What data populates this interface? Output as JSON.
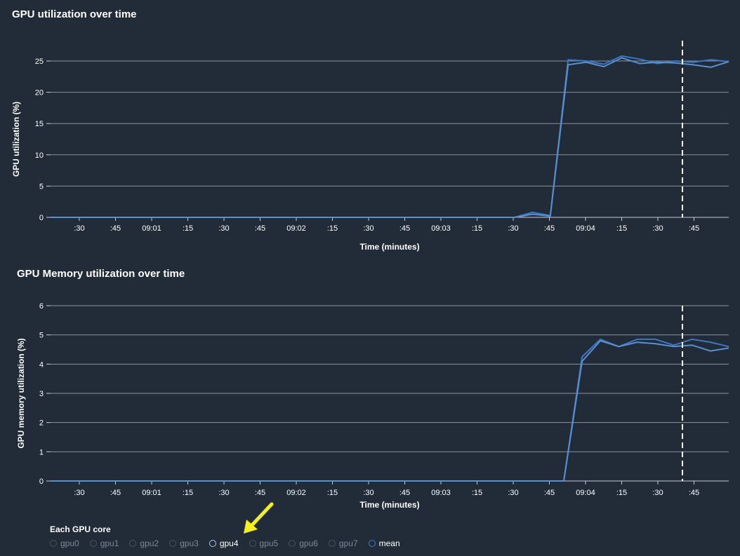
{
  "chart_data": [
    {
      "type": "line",
      "title": "GPU utilization over time",
      "xlabel": "Time (minutes)",
      "ylabel": "GPU utilization (%)",
      "ylim": [
        0,
        25
      ],
      "yticks": [
        0,
        5,
        10,
        15,
        20,
        25
      ],
      "xtick_labels": [
        ":30",
        ":45",
        "09:01",
        ":15",
        ":30",
        ":45",
        "09:02",
        ":15",
        ":30",
        ":45",
        "09:03",
        ":15",
        ":30",
        ":45",
        "09:04",
        ":15",
        ":30",
        ":45"
      ],
      "grid": true,
      "marker": "vertical dashed line near :40",
      "series": [
        {
          "values": [
            0,
            0,
            0,
            0,
            0,
            0,
            0,
            0,
            0,
            0,
            0,
            0,
            0,
            0,
            0,
            0,
            0,
            0,
            0,
            0,
            0,
            0,
            0,
            0,
            0,
            0,
            0,
            0.8,
            0.3,
            25.2,
            25.0,
            24.5,
            25.8,
            25.3,
            24.6,
            25.0,
            24.8,
            25.2,
            24.9
          ]
        },
        {
          "values": [
            0,
            0,
            0,
            0,
            0,
            0,
            0,
            0,
            0,
            0,
            0,
            0,
            0,
            0,
            0,
            0,
            0,
            0,
            0,
            0,
            0,
            0,
            0,
            0,
            0,
            0,
            0,
            0.5,
            0.2,
            24.4,
            24.8,
            24.1,
            25.5,
            24.6,
            24.8,
            24.7,
            24.4,
            24.0,
            24.9
          ]
        }
      ]
    },
    {
      "type": "line",
      "title": "GPU Memory utilization over time",
      "xlabel": "Time (minutes)",
      "ylabel": "GPU memory utilization (%)",
      "ylim": [
        0,
        6
      ],
      "yticks": [
        0,
        1,
        2,
        3,
        4,
        5,
        6
      ],
      "xtick_labels": [
        ":30",
        ":45",
        "09:01",
        ":15",
        ":30",
        ":45",
        "09:02",
        ":15",
        ":30",
        ":45",
        "09:03",
        ":15",
        ":30",
        ":45",
        "09:04",
        ":15",
        ":30",
        ":45"
      ],
      "grid": true,
      "marker": "vertical dashed line near :40",
      "series": [
        {
          "values": [
            0,
            0,
            0,
            0,
            0,
            0,
            0,
            0,
            0,
            0,
            0,
            0,
            0,
            0,
            0,
            0,
            0,
            0,
            0,
            0,
            0,
            0,
            0,
            0,
            0,
            0,
            0,
            0,
            0,
            4.25,
            4.85,
            4.6,
            4.85,
            4.85,
            4.65,
            4.85,
            4.75,
            4.6
          ]
        },
        {
          "values": [
            0,
            0,
            0,
            0,
            0,
            0,
            0,
            0,
            0,
            0,
            0,
            0,
            0,
            0,
            0,
            0,
            0,
            0,
            0,
            0,
            0,
            0,
            0,
            0,
            0,
            0,
            0,
            0,
            0,
            4.1,
            4.8,
            4.6,
            4.75,
            4.7,
            4.6,
            4.65,
            4.45,
            4.55
          ]
        }
      ]
    }
  ],
  "legend": {
    "title": "Each GPU core",
    "items": [
      {
        "label": "gpu0",
        "state": "inactive"
      },
      {
        "label": "gpu1",
        "state": "inactive"
      },
      {
        "label": "gpu2",
        "state": "inactive"
      },
      {
        "label": "gpu3",
        "state": "inactive"
      },
      {
        "label": "gpu4",
        "state": "active"
      },
      {
        "label": "gpu5",
        "state": "inactive"
      },
      {
        "label": "gpu6",
        "state": "inactive"
      },
      {
        "label": "gpu7",
        "state": "inactive"
      },
      {
        "label": "mean",
        "state": "mean"
      }
    ]
  },
  "colors": {
    "background": "#222b38",
    "line_primary": "#3a77c4",
    "line_secondary": "#5a8fd0",
    "grid": "#8a93a0",
    "axis_text": "#ffffff",
    "marker": "#ffffff",
    "arrow": "#f5ef1b"
  },
  "annotation_icon": "yellow-arrow-icon"
}
